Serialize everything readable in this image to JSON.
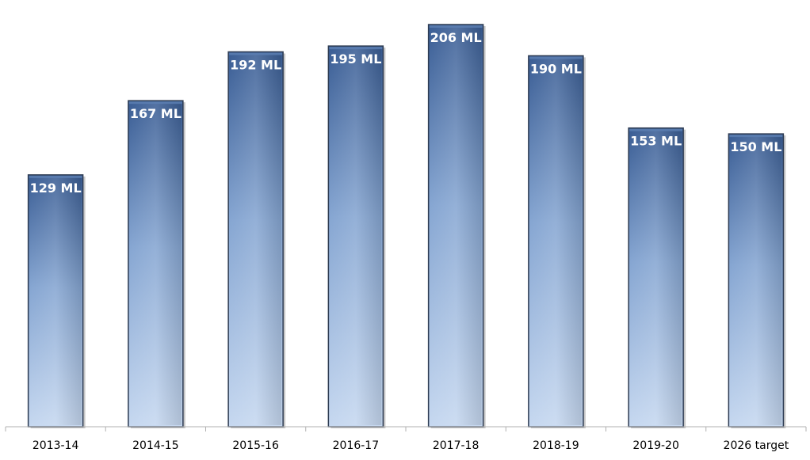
{
  "chart_data": {
    "type": "bar",
    "title": "",
    "xlabel": "",
    "ylabel": "",
    "categories": [
      "2013-14",
      "2014-15",
      "2015-16",
      "2016-17",
      "2017-18",
      "2018-19",
      "2019-20",
      "2026 target"
    ],
    "values": [
      129,
      167,
      192,
      195,
      206,
      190,
      153,
      150
    ],
    "data_labels": [
      "129 ML",
      "167 ML",
      "192 ML",
      "195 ML",
      "206 ML",
      "190 ML",
      "153 ML",
      "150 ML"
    ],
    "ylim": [
      0,
      206
    ],
    "grid": false,
    "legend": "none",
    "colors": {
      "bar_top": "#3f6298",
      "bar_bottom": "#c6d8f0",
      "bar_edge": "#2d3b52",
      "label": "#ffffff",
      "axis": "#b0b0b0"
    }
  }
}
